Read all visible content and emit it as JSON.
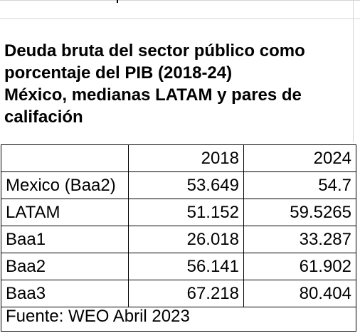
{
  "title_lines": [
    "Deuda bruta del sector público como",
    "porcentaje del PIB (2018-24)",
    "México, medianas LATAM y pares de",
    "califación"
  ],
  "table": {
    "headers": [
      "",
      "2018",
      "2024"
    ],
    "rows": [
      [
        "Mexico (Baa2)",
        "53.649",
        "54.7"
      ],
      [
        "LATAM",
        "51.152",
        "59.5265"
      ],
      [
        "Baa1",
        "26.018",
        "33.287"
      ],
      [
        "Baa2",
        "56.141",
        "61.902"
      ],
      [
        "Baa3",
        "67.218",
        "80.404"
      ]
    ]
  },
  "source": "Fuente: WEO Abril 2023"
}
